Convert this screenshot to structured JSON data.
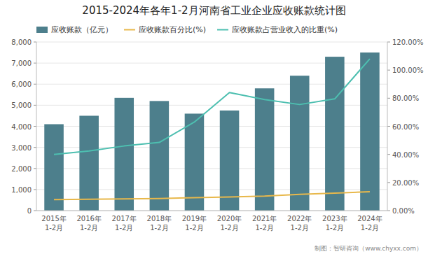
{
  "chart_data": {
    "type": "bar",
    "title": "2015-2024年各年1-2月河南省工业企业应收账款统计图",
    "categories": [
      "2015年\n1-2月",
      "2016年\n1-2月",
      "2017年\n1-2月",
      "2018年\n1-2月",
      "2019年\n1-2月",
      "2020年\n1-2月",
      "2021年\n1-2月",
      "2022年\n1-2月",
      "2023年\n1-2月",
      "2024年\n1-2月"
    ],
    "series": [
      {
        "name": "应收账款（亿元）",
        "type": "bar",
        "color": "#4d7f8c",
        "values": [
          4100,
          4500,
          5350,
          5200,
          4600,
          4750,
          5800,
          6400,
          7300,
          7500
        ]
      },
      {
        "name": "应收账款百分比(%)",
        "type": "line",
        "color": "#e8b84b",
        "values": [
          520,
          540,
          560,
          575,
          610,
          650,
          690,
          770,
          830,
          900
        ]
      },
      {
        "name": "应收账款占营业收入的比重(%)",
        "type": "line",
        "color": "#4dbfb0",
        "axis": "y2",
        "values": [
          40.0,
          42.5,
          46.0,
          48.5,
          63.0,
          84.0,
          79.0,
          75.5,
          79.5,
          108.0
        ]
      }
    ],
    "ylim": [
      0,
      8000
    ],
    "yticks": [
      0,
      {
        "value": 1000,
        "label": "1,000"
      },
      {
        "value": 2000,
        "label": "2,000"
      },
      {
        "value": 3000,
        "label": "3,000"
      },
      {
        "value": 4000,
        "label": "4,000"
      },
      {
        "value": 5000,
        "label": "5,000"
      },
      {
        "value": 6000,
        "label": "6,000"
      },
      {
        "value": 7000,
        "label": "7,000"
      },
      {
        "value": 8000,
        "label": "8,000"
      }
    ],
    "y2lim": [
      0,
      120
    ],
    "y2ticks": [
      {
        "value": 0,
        "label": "0.00%"
      },
      {
        "value": 20,
        "label": "20.00%"
      },
      {
        "value": 40,
        "label": "40.00%"
      },
      {
        "value": 60,
        "label": "60.00%"
      },
      {
        "value": 80,
        "label": "80.00%"
      },
      {
        "value": 100,
        "label": "100.00%"
      },
      {
        "value": 120,
        "label": "120.00%"
      }
    ],
    "grid": true,
    "legend": "upper left",
    "annotations": [
      "制图：智研咨询（www.chyxx.com）"
    ]
  }
}
